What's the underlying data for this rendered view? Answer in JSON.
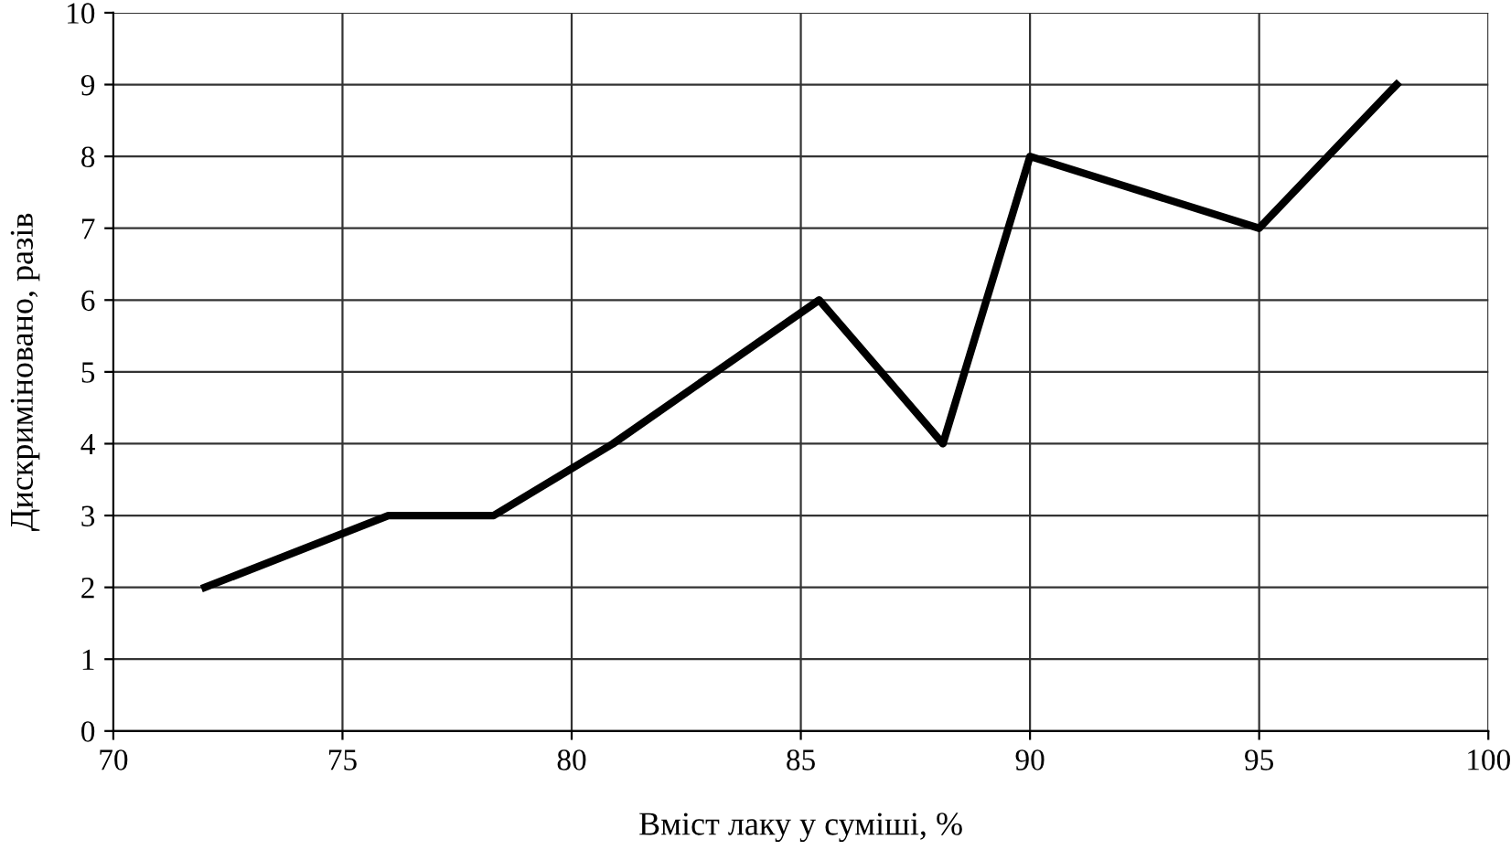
{
  "chart_data": {
    "type": "line",
    "xlabel": "Вміст лаку у суміші, %",
    "ylabel": "Дискриміновано, разів",
    "x": [
      72,
      76,
      78.3,
      80.9,
      85.4,
      88.1,
      90,
      95,
      98
    ],
    "series": [
      {
        "color": "#000000",
        "values": [
          2,
          3,
          3,
          4,
          6,
          4,
          8,
          7,
          9
        ]
      }
    ],
    "xlim": [
      70,
      100
    ],
    "xticks": [
      70,
      75,
      80,
      85,
      90,
      95,
      100
    ],
    "ylim": [
      0,
      10
    ],
    "yticks": [
      0,
      1,
      2,
      3,
      4,
      5,
      6,
      7,
      8,
      9,
      10
    ],
    "grid": true,
    "marker": "none",
    "line_style": "solid"
  }
}
